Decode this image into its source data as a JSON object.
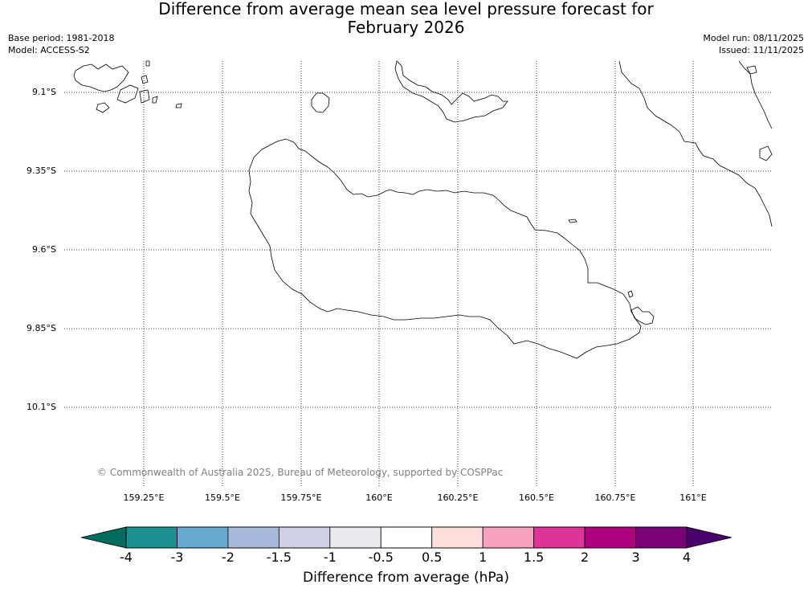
{
  "title": {
    "line1": "Difference from average mean sea level pressure forecast for",
    "line2": "February 2026"
  },
  "meta_left": {
    "base_period": "Base period: 1981-2018",
    "model": "Model: ACCESS-S2"
  },
  "meta_right": {
    "model_run": "Model run: 08/11/2025",
    "issued": "Issued: 11/11/2025"
  },
  "map": {
    "lat_labels": [
      "9.1°S",
      "9.35°S",
      "9.6°S",
      "9.85°S",
      "10.1°S"
    ],
    "lon_labels": [
      "159.25°E",
      "159.5°E",
      "159.75°E",
      "160°E",
      "160.25°E",
      "160.5°E",
      "160.75°E",
      "161°E"
    ],
    "copyright": "© Commonwealth of Australia 2025, Bureau of Meteorology, supported by COSPPac"
  },
  "colorbar": {
    "ticks": [
      "-4",
      "-3",
      "-2",
      "-1.5",
      "-1",
      "-0.5",
      "0.5",
      "1",
      "1.5",
      "2",
      "3",
      "4"
    ],
    "colors": [
      "#1a8f8f",
      "#67a9cf",
      "#a6b9db",
      "#cfcfe6",
      "#ebe8ee",
      "#ffffff",
      "#ffdede",
      "#f7a1c0",
      "#dd3497",
      "#ae017e",
      "#7a0177"
    ],
    "under_color": "#036c5f",
    "over_color": "#49006a",
    "label": "Difference from average (hPa)"
  }
}
